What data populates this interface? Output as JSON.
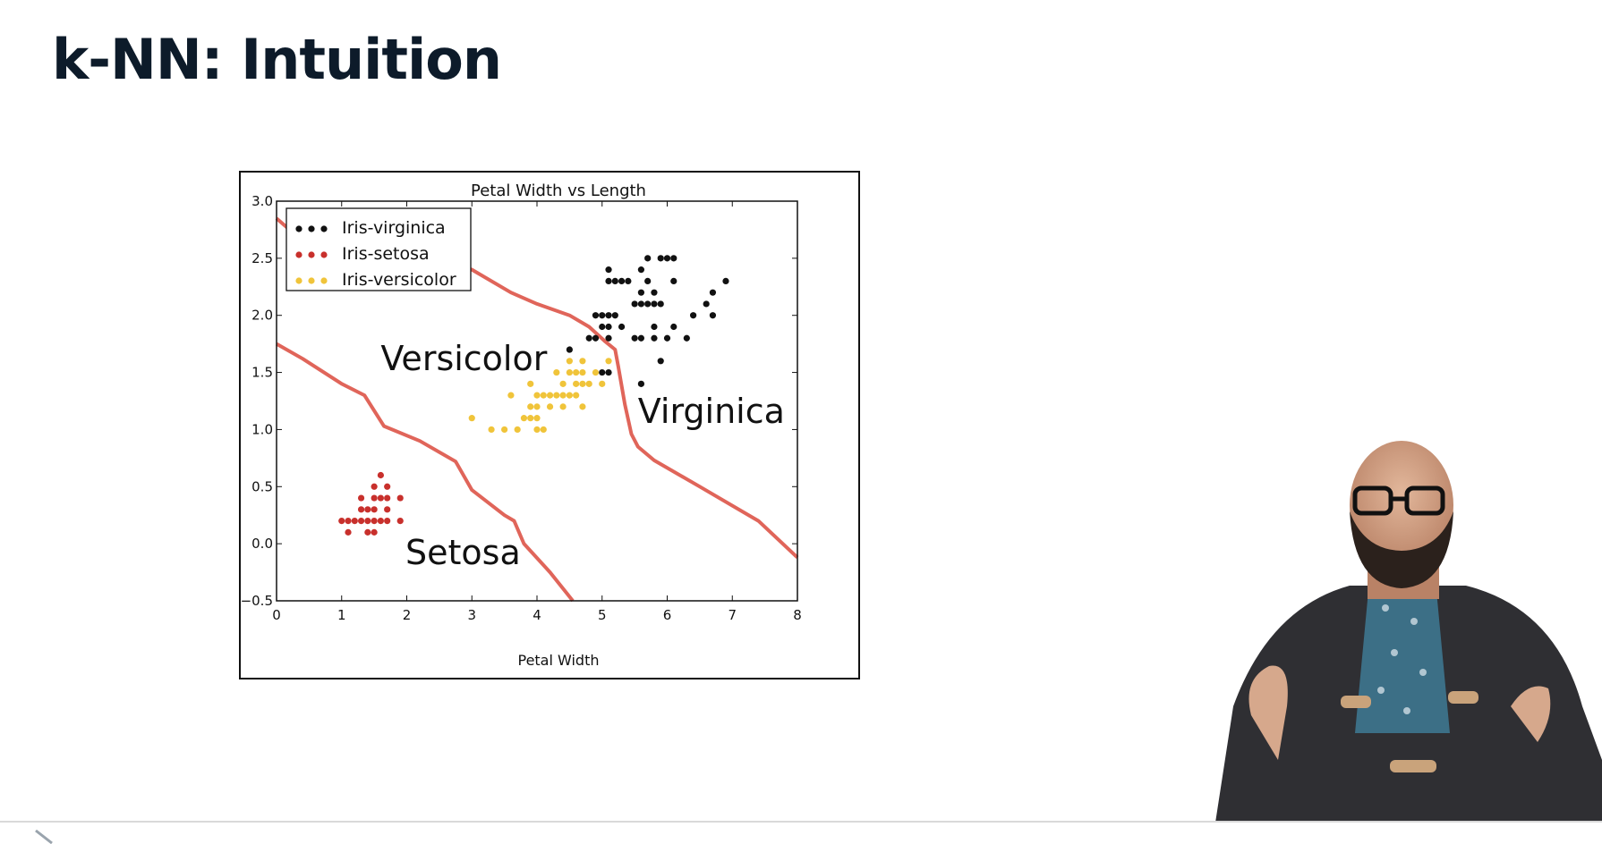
{
  "slide": {
    "title": "k-NN: Intuition"
  },
  "chart_data": {
    "type": "scatter",
    "title": "Petal Width vs Length",
    "xlabel": "Petal Width",
    "ylabel": "",
    "xlim": [
      0,
      8
    ],
    "ylim": [
      -0.5,
      3.0
    ],
    "xticks": [
      "0",
      "1",
      "2",
      "3",
      "4",
      "5",
      "6",
      "7",
      "8"
    ],
    "yticks": [
      "−0.5",
      "0.0",
      "0.5",
      "1.0",
      "1.5",
      "2.0",
      "2.5",
      "3.0"
    ],
    "grid": false,
    "legend_position": "top-left",
    "series": [
      {
        "name": "Iris-virginica",
        "color": "#111111",
        "points": [
          [
            5.1,
            2.4
          ],
          [
            5.9,
            2.5
          ],
          [
            5.7,
            2.5
          ],
          [
            6.0,
            2.5
          ],
          [
            6.1,
            2.5
          ],
          [
            5.6,
            2.4
          ],
          [
            5.1,
            2.3
          ],
          [
            5.2,
            2.3
          ],
          [
            5.3,
            2.3
          ],
          [
            5.4,
            2.3
          ],
          [
            5.7,
            2.3
          ],
          [
            6.1,
            2.3
          ],
          [
            6.9,
            2.3
          ],
          [
            5.6,
            2.2
          ],
          [
            5.8,
            2.2
          ],
          [
            6.7,
            2.2
          ],
          [
            5.5,
            2.1
          ],
          [
            5.6,
            2.1
          ],
          [
            5.7,
            2.1
          ],
          [
            5.8,
            2.1
          ],
          [
            5.9,
            2.1
          ],
          [
            6.6,
            2.1
          ],
          [
            4.9,
            2.0
          ],
          [
            5.0,
            2.0
          ],
          [
            5.1,
            2.0
          ],
          [
            5.2,
            2.0
          ],
          [
            6.4,
            2.0
          ],
          [
            6.7,
            2.0
          ],
          [
            5.0,
            1.9
          ],
          [
            5.1,
            1.9
          ],
          [
            5.3,
            1.9
          ],
          [
            5.8,
            1.9
          ],
          [
            6.1,
            1.9
          ],
          [
            4.8,
            1.8
          ],
          [
            4.9,
            1.8
          ],
          [
            5.1,
            1.8
          ],
          [
            5.5,
            1.8
          ],
          [
            5.6,
            1.8
          ],
          [
            5.8,
            1.8
          ],
          [
            6.0,
            1.8
          ],
          [
            6.3,
            1.8
          ],
          [
            4.5,
            1.7
          ],
          [
            5.9,
            1.6
          ],
          [
            5.0,
            1.5
          ],
          [
            5.1,
            1.5
          ],
          [
            5.6,
            1.4
          ]
        ]
      },
      {
        "name": "Iris-setosa",
        "color": "#c8302c",
        "points": [
          [
            1.6,
            0.6
          ],
          [
            1.5,
            0.5
          ],
          [
            1.7,
            0.5
          ],
          [
            1.3,
            0.4
          ],
          [
            1.5,
            0.4
          ],
          [
            1.6,
            0.4
          ],
          [
            1.7,
            0.4
          ],
          [
            1.9,
            0.4
          ],
          [
            1.3,
            0.3
          ],
          [
            1.4,
            0.3
          ],
          [
            1.5,
            0.3
          ],
          [
            1.7,
            0.3
          ],
          [
            1.3,
            0.2
          ],
          [
            1.4,
            0.2
          ],
          [
            1.5,
            0.2
          ],
          [
            1.6,
            0.2
          ],
          [
            1.7,
            0.2
          ],
          [
            1.0,
            0.2
          ],
          [
            1.1,
            0.2
          ],
          [
            1.2,
            0.2
          ],
          [
            1.9,
            0.2
          ],
          [
            1.1,
            0.1
          ],
          [
            1.4,
            0.1
          ],
          [
            1.5,
            0.1
          ]
        ]
      },
      {
        "name": "Iris-versicolor",
        "color": "#f0c43a",
        "points": [
          [
            4.5,
            1.6
          ],
          [
            4.7,
            1.6
          ],
          [
            5.1,
            1.6
          ],
          [
            4.5,
            1.5
          ],
          [
            4.6,
            1.5
          ],
          [
            4.7,
            1.5
          ],
          [
            4.9,
            1.5
          ],
          [
            4.3,
            1.5
          ],
          [
            3.9,
            1.4
          ],
          [
            4.4,
            1.4
          ],
          [
            4.6,
            1.4
          ],
          [
            4.7,
            1.4
          ],
          [
            4.8,
            1.4
          ],
          [
            5.0,
            1.4
          ],
          [
            3.6,
            1.3
          ],
          [
            4.0,
            1.3
          ],
          [
            4.1,
            1.3
          ],
          [
            4.2,
            1.3
          ],
          [
            4.3,
            1.3
          ],
          [
            4.4,
            1.3
          ],
          [
            4.5,
            1.3
          ],
          [
            4.6,
            1.3
          ],
          [
            3.9,
            1.2
          ],
          [
            4.0,
            1.2
          ],
          [
            4.2,
            1.2
          ],
          [
            4.4,
            1.2
          ],
          [
            4.7,
            1.2
          ],
          [
            3.8,
            1.1
          ],
          [
            3.0,
            1.1
          ],
          [
            3.9,
            1.1
          ],
          [
            4.0,
            1.1
          ],
          [
            3.3,
            1.0
          ],
          [
            3.5,
            1.0
          ],
          [
            3.7,
            1.0
          ],
          [
            4.0,
            1.0
          ],
          [
            4.1,
            1.0
          ]
        ]
      }
    ],
    "boundaries": [
      {
        "color": "#e0655a",
        "points": [
          [
            0,
            1.75
          ],
          [
            0.4,
            1.62
          ],
          [
            1.0,
            1.4
          ],
          [
            1.35,
            1.3
          ],
          [
            1.65,
            1.03
          ],
          [
            2.2,
            0.9
          ],
          [
            2.75,
            0.72
          ],
          [
            3.0,
            0.47
          ],
          [
            3.5,
            0.25
          ],
          [
            3.65,
            0.2
          ],
          [
            3.8,
            0.0
          ],
          [
            4.2,
            -0.25
          ],
          [
            4.55,
            -0.5
          ]
        ]
      },
      {
        "color": "#e0655a",
        "points": [
          [
            0,
            2.85
          ],
          [
            0.2,
            2.75
          ],
          [
            1.0,
            2.6
          ],
          [
            2.0,
            2.55
          ],
          [
            3.0,
            2.4
          ],
          [
            3.6,
            2.2
          ],
          [
            4.0,
            2.1
          ],
          [
            4.5,
            2.0
          ],
          [
            4.8,
            1.9
          ],
          [
            5.05,
            1.77
          ],
          [
            5.2,
            1.7
          ],
          [
            5.25,
            1.55
          ],
          [
            5.35,
            1.22
          ],
          [
            5.45,
            0.96
          ],
          [
            5.55,
            0.85
          ],
          [
            5.8,
            0.73
          ],
          [
            6.5,
            0.5
          ],
          [
            7.4,
            0.2
          ],
          [
            8.0,
            -0.12
          ]
        ]
      }
    ],
    "annotations": [
      {
        "text": "Versicolor",
        "x": 1.6,
        "y": 1.62
      },
      {
        "text": "Virginica",
        "x": 5.55,
        "y": 1.16
      },
      {
        "text": "Setosa",
        "x": 1.98,
        "y": -0.08
      }
    ]
  }
}
